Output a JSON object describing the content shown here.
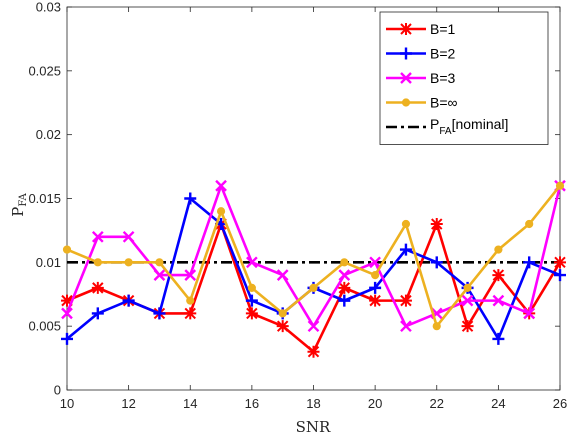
{
  "chart_data": {
    "type": "line",
    "xlabel": "SNR",
    "ylabel": "P",
    "ylabel_sub": "FA",
    "xlim": [
      10,
      26
    ],
    "ylim": [
      0,
      0.03
    ],
    "x_ticks": [
      "10",
      "12",
      "14",
      "16",
      "18",
      "20",
      "22",
      "24",
      "26"
    ],
    "y_ticks": [
      "0",
      "0.005",
      "0.01",
      "0.015",
      "0.02",
      "0.025",
      "0.03"
    ],
    "grid": false,
    "legend_position": "top-right",
    "x": [
      10,
      11,
      12,
      13,
      14,
      15,
      16,
      17,
      18,
      19,
      20,
      21,
      22,
      23,
      24,
      25,
      26
    ],
    "series": [
      {
        "name": "B=1",
        "color": "#ff0000",
        "marker": "asterisk",
        "values": [
          0.007,
          0.008,
          0.007,
          0.006,
          0.006,
          0.013,
          0.006,
          0.005,
          0.003,
          0.008,
          0.007,
          0.007,
          0.013,
          0.005,
          0.009,
          0.006,
          0.01
        ]
      },
      {
        "name": "B=2",
        "color": "#0000ff",
        "marker": "plus",
        "values": [
          0.004,
          0.006,
          0.007,
          0.006,
          0.015,
          0.013,
          0.007,
          0.006,
          0.008,
          0.007,
          0.008,
          0.011,
          0.01,
          0.008,
          0.004,
          0.01,
          0.009
        ]
      },
      {
        "name": "B=3",
        "color": "#ff00ff",
        "marker": "x",
        "values": [
          0.006,
          0.012,
          0.012,
          0.009,
          0.009,
          0.016,
          0.01,
          0.009,
          0.005,
          0.009,
          0.01,
          0.005,
          0.006,
          0.007,
          0.007,
          0.006,
          0.016
        ]
      },
      {
        "name": "B=∞",
        "color": "#edb120",
        "marker": "circle",
        "values": [
          0.011,
          0.01,
          0.01,
          0.01,
          0.007,
          0.014,
          0.008,
          0.006,
          0.008,
          0.01,
          0.009,
          0.013,
          0.005,
          0.008,
          0.011,
          0.013,
          0.016
        ]
      }
    ],
    "reference_line": {
      "name": "P",
      "name_sub": "FA",
      "name_suffix": "[nominal]",
      "value": 0.01,
      "color": "#000000",
      "style": "dash-dot"
    }
  }
}
